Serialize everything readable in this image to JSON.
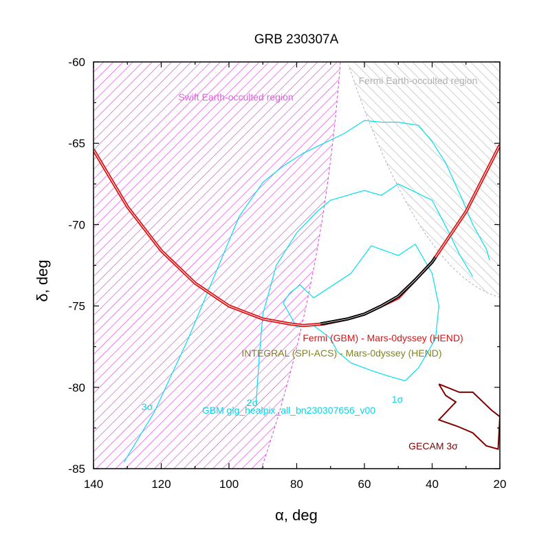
{
  "chart_data": {
    "type": "line",
    "title": "GRB 230307A",
    "xlabel": "α, deg",
    "ylabel": "δ, deg",
    "xlim": [
      140,
      20
    ],
    "ylim": [
      -85,
      -60
    ],
    "xticks": [
      140,
      120,
      100,
      80,
      60,
      40,
      20
    ],
    "yticks": [
      -60,
      -65,
      -70,
      -75,
      -80,
      -85
    ],
    "colors": {
      "swift": "#e040e0",
      "fermi_occ": "#a8a8a8",
      "gbm": "#00e0f0",
      "fermi_hend": "#e01010",
      "integral_hend": "#808020",
      "gecam": "#800000",
      "arc_black": "#000000"
    },
    "annotations": {
      "swift_region": "Swift Earth-occulted region",
      "fermi_region": "Fermi Earth-occulted region",
      "fermi_hend": "Fermi (GBM) - Mars-0dyssey (HEND)",
      "integral_hend": "INTEGRAL (SPI-ACS) - Mars-0dyssey (HEND)",
      "gbm": "GBM glg_healpix_all_bn230307656_v00",
      "gecam": "GECAM 3σ",
      "sigma1": "1σ",
      "sigma2": "2σ",
      "sigma3": "3σ"
    },
    "series": [
      {
        "name": "Fermi (GBM) - Mars-0dyssey (HEND) annulus",
        "color_key": "fermi_hend",
        "x": [
          140,
          130,
          120,
          110,
          100,
          90,
          82,
          78,
          72,
          65,
          60,
          50,
          40,
          30,
          20
        ],
        "y": [
          -65.4,
          -68.9,
          -71.6,
          -73.6,
          -75.0,
          -75.8,
          -76.1,
          -76.2,
          -76.1,
          -75.8,
          -75.5,
          -74.5,
          -72.3,
          -69.2,
          -65.1
        ]
      },
      {
        "name": "INTEGRAL (SPI-ACS) - Mars-0dyssey (HEND) annulus",
        "color_key": "arc_black",
        "x": [
          73,
          65,
          60,
          55,
          50,
          45,
          40,
          39
        ],
        "y": [
          -76.1,
          -75.8,
          -75.5,
          -75.0,
          -74.4,
          -73.4,
          -72.3,
          -72.0
        ]
      },
      {
        "name": "GBM 1σ",
        "color_key": "gbm",
        "x": [
          57.5,
          64.0,
          68.0,
          70.0,
          75.0,
          80.0,
          84.0,
          82.0,
          79.0,
          75.0,
          64.0,
          58.0,
          50.0,
          45.0,
          40.0,
          38.0,
          39.0,
          44.0,
          48.0,
          53.0,
          57.5
        ],
        "y": [
          -79.0,
          -78.5,
          -77.8,
          -77.0,
          -76.2,
          -76.3,
          -74.8,
          -74.2,
          -73.7,
          -74.5,
          -73.0,
          -71.3,
          -71.9,
          -71.2,
          -73.0,
          -75.0,
          -77.0,
          -78.8,
          -79.6,
          -79.3,
          -79.0
        ]
      },
      {
        "name": "GBM 2σ",
        "color_key": "gbm",
        "x": [
          92.0,
          91.0,
          90.0,
          86.0,
          80.0,
          74.0,
          70.0,
          65.0,
          60.0,
          55.0,
          50.0,
          45.0,
          40.0,
          35.0,
          32.0,
          28.0
        ],
        "y": [
          -81.0,
          -78.0,
          -75.5,
          -72.5,
          -70.5,
          -69.2,
          -68.5,
          -68.2,
          -67.9,
          -68.2,
          -67.5,
          -68.0,
          -68.5,
          -70.5,
          -71.8,
          -73.2
        ]
      },
      {
        "name": "GBM 3σ",
        "color_key": "gbm",
        "x": [
          131.0,
          122.0,
          112.0,
          104.0,
          97.0,
          90.0,
          84.0,
          78.0,
          72.0,
          66.0,
          60.0,
          55.0,
          50.0,
          44.0,
          40.0,
          36.0,
          31.0,
          28.0,
          24.0,
          23.0
        ],
        "y": [
          -84.6,
          -81.5,
          -77.0,
          -73.0,
          -69.5,
          -67.4,
          -66.4,
          -65.6,
          -65.0,
          -64.4,
          -63.6,
          -63.7,
          -63.7,
          -63.9,
          -64.9,
          -66.2,
          -68.5,
          -70.0,
          -71.5,
          -72.2
        ]
      },
      {
        "name": "GECAM 3σ",
        "color_key": "gecam",
        "x": [
          38.0,
          32.0,
          28.0,
          22.5,
          20.0,
          20.5,
          24.0,
          28.0,
          32.5,
          38.0,
          33.0,
          36.0,
          38.0
        ],
        "y": [
          -79.8,
          -80.3,
          -80.3,
          -81.4,
          -81.8,
          -83.8,
          -83.6,
          -82.8,
          -82.4,
          -82.0,
          -80.9,
          -80.5,
          -79.8
        ]
      }
    ]
  }
}
